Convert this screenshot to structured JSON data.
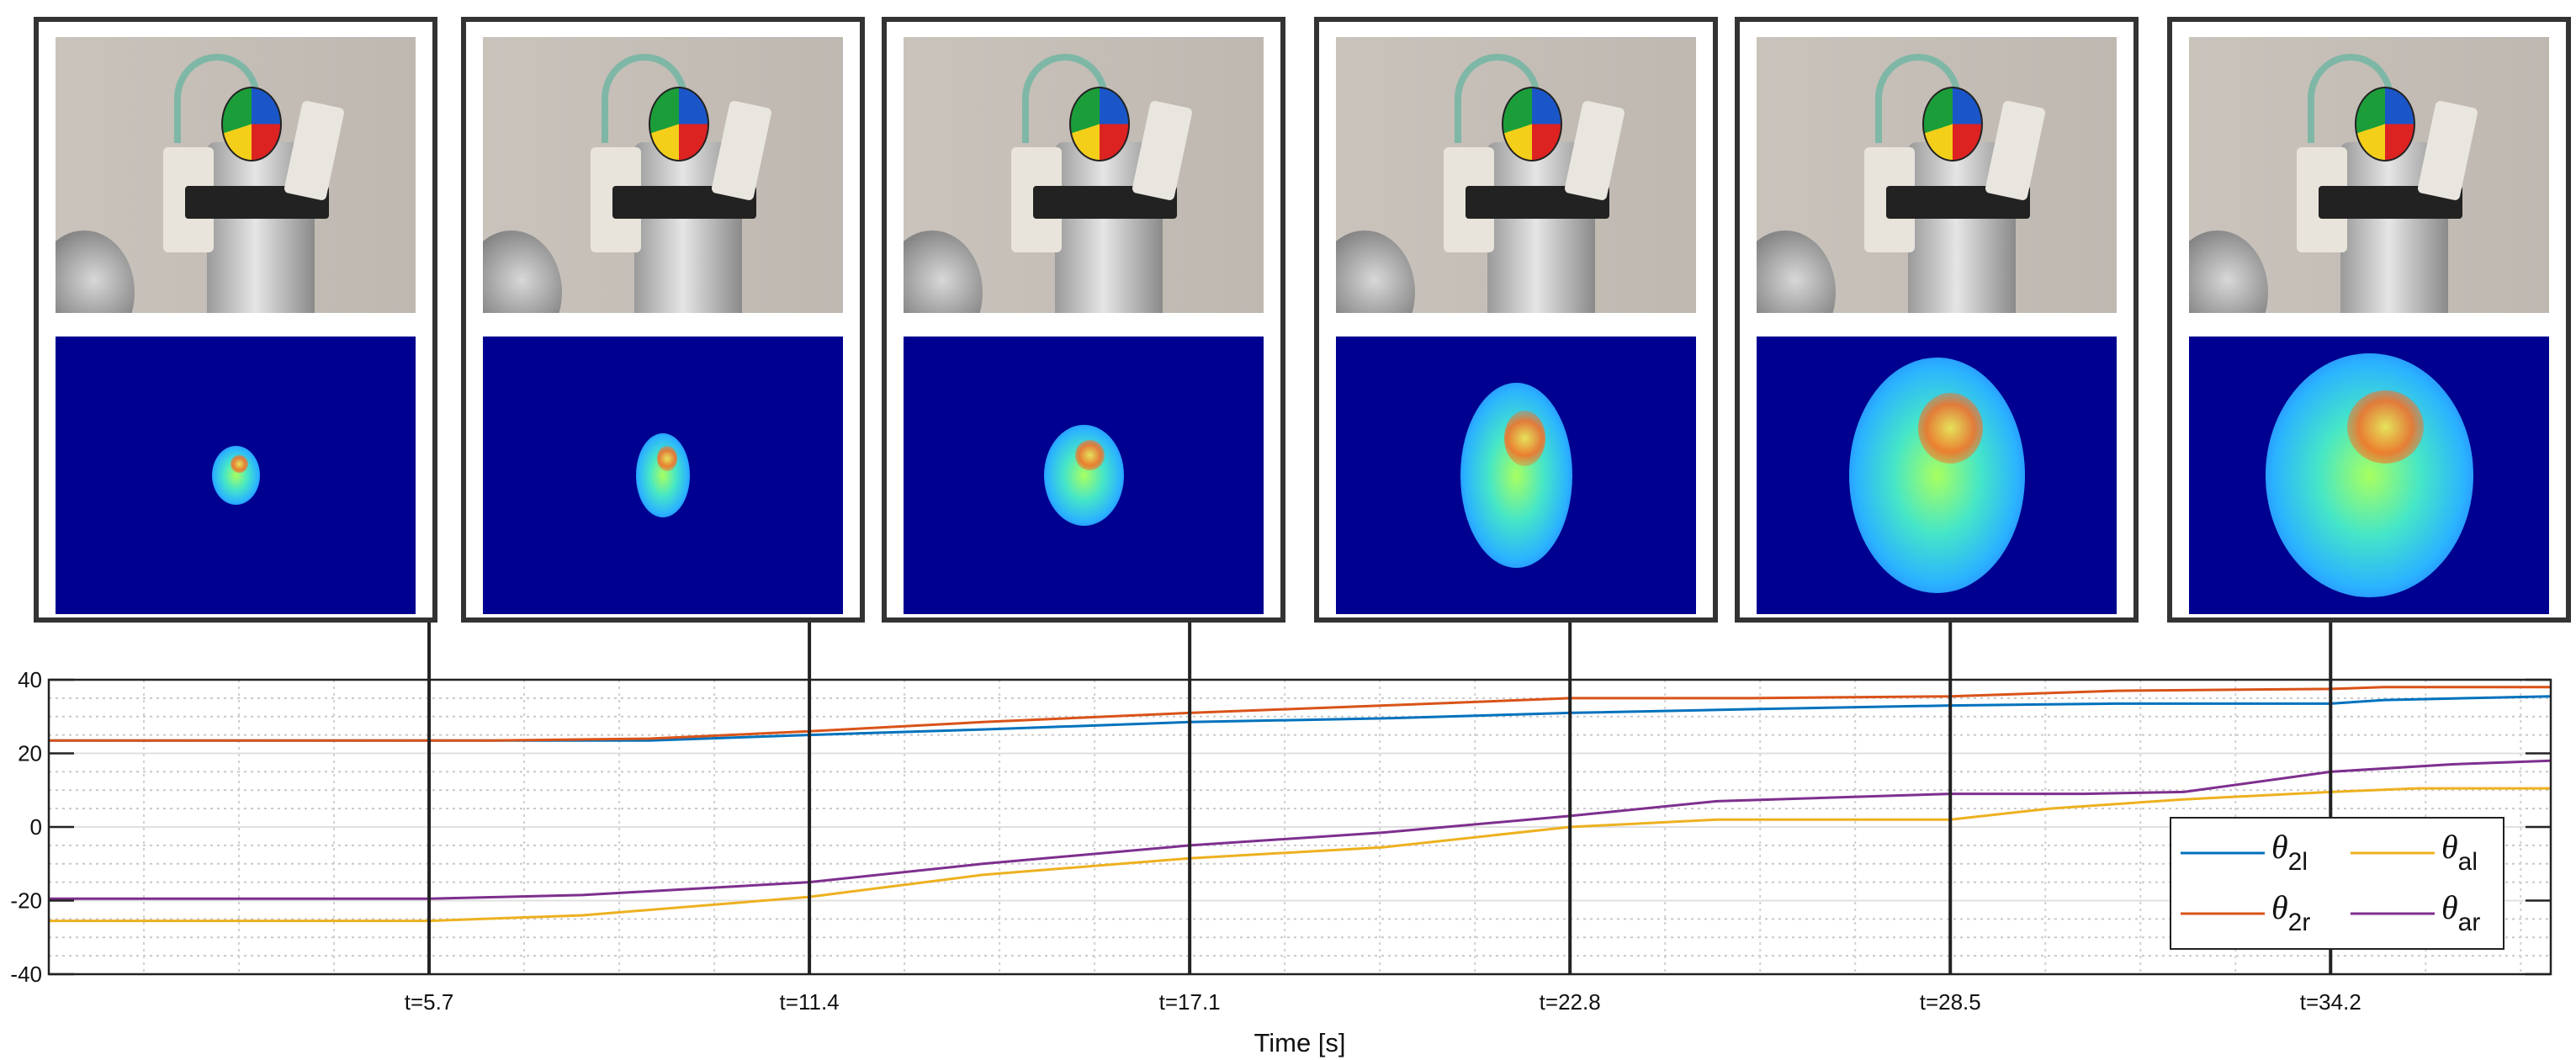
{
  "chart_data": {
    "type": "line",
    "title": "",
    "xlabel": "Time [s]",
    "ylabel": "",
    "xlim": [
      0,
      37.5
    ],
    "ylim": [
      -40,
      40
    ],
    "yticks": [
      "40",
      "20",
      "0",
      "-20",
      "-40"
    ],
    "xticks": [
      {
        "x": 5.7,
        "label": "t=5.7"
      },
      {
        "x": 11.4,
        "label": "t=11.4"
      },
      {
        "x": 17.1,
        "label": "t=17.1"
      },
      {
        "x": 22.8,
        "label": "t=22.8"
      },
      {
        "x": 28.5,
        "label": "t=28.5"
      },
      {
        "x": 34.2,
        "label": "t=34.2"
      }
    ],
    "grid": true,
    "legend_position": "bottom-right",
    "series": [
      {
        "name": "θ",
        "sub": "2l",
        "color": "#0072BD",
        "x": [
          0,
          6.0,
          6.6,
          9.0,
          11.4,
          14.0,
          17.1,
          20.0,
          22.8,
          25.5,
          28.5,
          31.0,
          34.2,
          35.0,
          37.5
        ],
        "y": [
          23.5,
          23.5,
          23.5,
          23.5,
          25.0,
          26.5,
          28.5,
          29.5,
          31.0,
          32.0,
          33.0,
          33.5,
          33.5,
          34.5,
          35.5
        ]
      },
      {
        "name": "θ",
        "sub": "2r",
        "color": "#D95319",
        "x": [
          0,
          6.0,
          6.6,
          9.0,
          11.4,
          14.0,
          17.1,
          20.0,
          22.8,
          25.5,
          28.5,
          31.0,
          34.2,
          35.0,
          37.5
        ],
        "y": [
          23.5,
          23.5,
          23.5,
          24.0,
          26.0,
          28.5,
          31.0,
          33.0,
          35.0,
          35.0,
          35.5,
          37.0,
          37.5,
          38.0,
          38.0
        ]
      },
      {
        "name": "θ",
        "sub": "al",
        "color": "#EDB120",
        "x": [
          0,
          3.0,
          5.7,
          8.0,
          11.4,
          14.0,
          17.1,
          20.0,
          22.8,
          25.0,
          28.5,
          30.0,
          32.0,
          34.2,
          35.5,
          37.5
        ],
        "y": [
          -25.5,
          -25.5,
          -25.5,
          -24.0,
          -19.0,
          -13.0,
          -8.5,
          -5.5,
          0.0,
          2.0,
          2.0,
          5.0,
          7.5,
          9.5,
          10.5,
          10.5
        ]
      },
      {
        "name": "θ",
        "sub": "ar",
        "color": "#7E2F8E",
        "x": [
          0,
          3.0,
          5.7,
          8.0,
          11.4,
          14.0,
          17.1,
          20.0,
          22.8,
          25.0,
          28.5,
          30.5,
          32.0,
          34.2,
          36.0,
          37.5
        ],
        "y": [
          -19.5,
          -19.5,
          -19.5,
          -18.5,
          -15.0,
          -10.0,
          -5.0,
          -1.5,
          3.0,
          7.0,
          9.0,
          9.0,
          9.5,
          15.0,
          17.0,
          18.0
        ]
      }
    ]
  },
  "panels": [
    {
      "t": "t=5.7"
    },
    {
      "t": "t=11.4"
    },
    {
      "t": "t=17.1"
    },
    {
      "t": "t=22.8"
    },
    {
      "t": "t=28.5"
    },
    {
      "t": "t=34.2"
    }
  ]
}
